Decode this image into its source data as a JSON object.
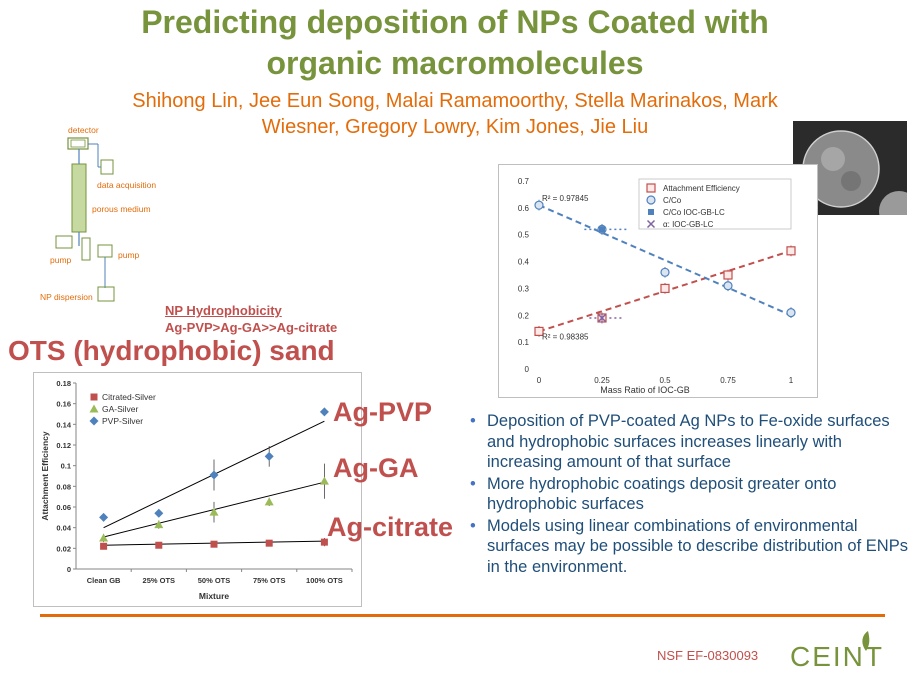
{
  "slide": {
    "title_line1": "Predicting deposition of NPs Coated with",
    "title_line2": "organic macromolecules",
    "authors_line1": "Shihong Lin, Jee Eun Song, Malai Ramamoorthy, Stella Marinakos, Mark",
    "authors_line2": "Wiesner, Gregory Lowry, Kim Jones, Jie Liu",
    "hydrophobicity_heading": "NP Hydrophobicity",
    "hydrophobicity_order": "Ag-PVP>Ag-GA>>Ag-citrate",
    "ots_heading": "OTS (hydrophobic) sand",
    "label_pvp": "Ag-PVP",
    "label_ga": "Ag-GA",
    "label_citrate": "Ag-citrate",
    "bullets": [
      "Deposition of PVP-coated Ag NPs to Fe-oxide surfaces and hydrophobic surfaces increases linearly with increasing amount of that surface",
      "More hydrophobic coatings deposit greater onto hydrophobic surfaces",
      "Models using linear combinations of environmental surfaces may be possible to describe distribution of ENPs in the environment."
    ],
    "grant": "NSF EF-0830093",
    "logo_text": "CEINT",
    "accent_color": "#e36c0a",
    "title_color": "#77933c"
  },
  "schematic": {
    "detector": "detector",
    "data_acquisition": "data acquisition",
    "porous_medium": "porous medium",
    "pump_left": "pump",
    "pump_right": "pump",
    "np_dispersion": "NP dispersion"
  },
  "chart_data": [
    {
      "type": "scatter",
      "xlabel": "Mixture",
      "ylabel": "Attachment Efficiency",
      "categories": [
        "Clean GB",
        "25% OTS",
        "50% OTS",
        "75% OTS",
        "100% OTS"
      ],
      "ylim": [
        0,
        0.18
      ],
      "yticks": [
        "0",
        "0.02",
        "0.04",
        "0.06",
        "0.08",
        "0.1",
        "0.12",
        "0.14",
        "0.16",
        "0.18"
      ],
      "legend_position": "top-left",
      "grid": false,
      "series": [
        {
          "name": "Citrated-Silver",
          "color": "#c0504d",
          "marker": "square",
          "values": [
            0.022,
            0.023,
            0.024,
            0.025,
            0.026
          ],
          "fit": [
            0.023,
            0.027
          ]
        },
        {
          "name": "GA-Silver",
          "color": "#9bbb59",
          "marker": "triangle",
          "values": [
            0.03,
            0.043,
            0.055,
            0.065,
            0.085
          ],
          "fit": [
            0.031,
            0.084
          ]
        },
        {
          "name": "PVP-Silver",
          "color": "#4f81bd",
          "marker": "diamond",
          "values": [
            0.05,
            0.054,
            0.091,
            0.109,
            0.152
          ],
          "fit": [
            0.04,
            0.143
          ]
        }
      ]
    },
    {
      "type": "scatter",
      "xlabel": "Mass Ratio of IOC-GB",
      "ylabel": "",
      "xlim": [
        0,
        1
      ],
      "ylim": [
        0,
        0.7
      ],
      "xticks": [
        "0",
        "0.25",
        "0.5",
        "0.75",
        "1"
      ],
      "yticks": [
        "0",
        "0.1",
        "0.2",
        "0.3",
        "0.4",
        "0.5",
        "0.6",
        "0.7"
      ],
      "legend_position": "top-right",
      "grid": false,
      "annotations": [
        "R² = 0.97845",
        "R² = 0.98385"
      ],
      "series": [
        {
          "name": "Attachment Efficiency",
          "color": "#c0504d",
          "marker": "square-open",
          "x": [
            0,
            0.25,
            0.5,
            0.75,
            1
          ],
          "y": [
            0.14,
            0.19,
            0.3,
            0.35,
            0.44
          ],
          "fit": [
            0.14,
            0.44
          ]
        },
        {
          "name": "C/Co",
          "color": "#4f81bd",
          "marker": "circle-open",
          "x": [
            0,
            0.25,
            0.5,
            0.75,
            1
          ],
          "y": [
            0.61,
            0.52,
            0.36,
            0.31,
            0.21
          ],
          "fit": [
            0.61,
            0.2
          ]
        },
        {
          "name": "C/Co IOC-GB-LC",
          "color": "#4f81bd",
          "marker": "plus-line",
          "x": [
            0.25
          ],
          "y": [
            0.52
          ]
        },
        {
          "name": "α: IOC-GB-LC",
          "color": "#8064a2",
          "marker": "x",
          "x": [
            0.25
          ],
          "y": [
            0.19
          ]
        }
      ]
    }
  ]
}
